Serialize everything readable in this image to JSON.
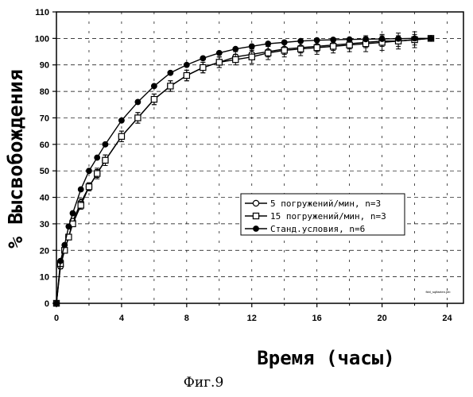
{
  "figure_label": "Фиг.9",
  "tiny_note": "fkbl_sqlfaxten.jnb",
  "chart_data": {
    "type": "line",
    "xlabel": "Время (часы)",
    "ylabel": "% Высвобождения",
    "xlim": [
      0,
      25
    ],
    "ylim": [
      0,
      110
    ],
    "x_ticks": [
      0,
      4,
      8,
      12,
      16,
      20,
      24
    ],
    "y_ticks": [
      0,
      10,
      20,
      30,
      40,
      50,
      60,
      70,
      80,
      90,
      100,
      110
    ],
    "grid": true,
    "legend_position": "lower-right",
    "series": [
      {
        "name": "5 погружений/мин, n=3",
        "marker": "open-circle",
        "x": [
          0,
          0.25,
          0.5,
          0.75,
          1,
          1.5,
          2,
          2.5,
          3,
          4,
          5,
          6,
          7,
          8,
          9,
          10,
          11,
          12,
          13,
          14,
          15,
          16,
          17,
          18,
          19,
          20,
          21,
          22,
          23
        ],
        "y": [
          0,
          14,
          20,
          25,
          31,
          38,
          44,
          49,
          54,
          63,
          70,
          77,
          82,
          86,
          89,
          91,
          93,
          94,
          95,
          96,
          96.5,
          97,
          97.5,
          98,
          98.5,
          99,
          99,
          99.5,
          100
        ],
        "err": [
          0,
          1,
          1,
          1,
          1,
          1.5,
          1.5,
          1.5,
          2,
          2,
          2,
          2,
          2,
          2,
          2,
          2,
          2,
          2,
          2,
          2,
          2,
          2,
          2,
          2,
          2,
          2,
          2,
          2,
          0
        ]
      },
      {
        "name": "15 погружений/мин, n=3",
        "marker": "open-square",
        "x": [
          0,
          0.25,
          0.5,
          0.75,
          1,
          1.5,
          2,
          2.5,
          3,
          4,
          5,
          6,
          7,
          8,
          9,
          10,
          11,
          12,
          13,
          14,
          15,
          16,
          17,
          18,
          19,
          20,
          21,
          22,
          23
        ],
        "y": [
          0,
          15,
          20,
          25,
          30,
          37,
          44,
          49,
          54,
          63,
          70,
          77,
          82,
          86,
          89,
          91,
          92,
          93,
          94.5,
          95.5,
          96,
          96.5,
          97,
          97.5,
          98,
          98.5,
          99,
          99.5,
          100
        ],
        "err": [
          0,
          1,
          1,
          1,
          1,
          1.5,
          1.5,
          2,
          2,
          2,
          2,
          2,
          2,
          2,
          2,
          2,
          2,
          2.5,
          2.5,
          2.5,
          2.5,
          2.5,
          2.5,
          2.5,
          3,
          3,
          3,
          3,
          0
        ]
      },
      {
        "name": "Станд.условия, n=6",
        "marker": "filled-circle",
        "x": [
          0,
          0.25,
          0.5,
          0.75,
          1,
          1.5,
          2,
          2.5,
          3,
          4,
          5,
          6,
          7,
          8,
          9,
          10,
          11,
          12,
          13,
          14,
          15,
          16,
          17,
          18,
          19,
          20,
          21,
          22,
          23
        ],
        "y": [
          0,
          16,
          22,
          29,
          34,
          43,
          50,
          55,
          60,
          69,
          76,
          82,
          87,
          90,
          92.5,
          94.5,
          96,
          97,
          98,
          98.5,
          99,
          99.3,
          99.5,
          99.6,
          99.7,
          99.8,
          99.9,
          100,
          100
        ],
        "err": [
          0,
          0.5,
          0.5,
          0.5,
          0.5,
          0.5,
          0.5,
          0.5,
          0.5,
          0.5,
          0.5,
          0.5,
          0.5,
          0.5,
          0.5,
          0.5,
          0.5,
          0.5,
          0.5,
          0.5,
          0.5,
          0.5,
          0.5,
          0.5,
          0.5,
          0.5,
          0.5,
          0.5,
          0
        ]
      }
    ]
  }
}
